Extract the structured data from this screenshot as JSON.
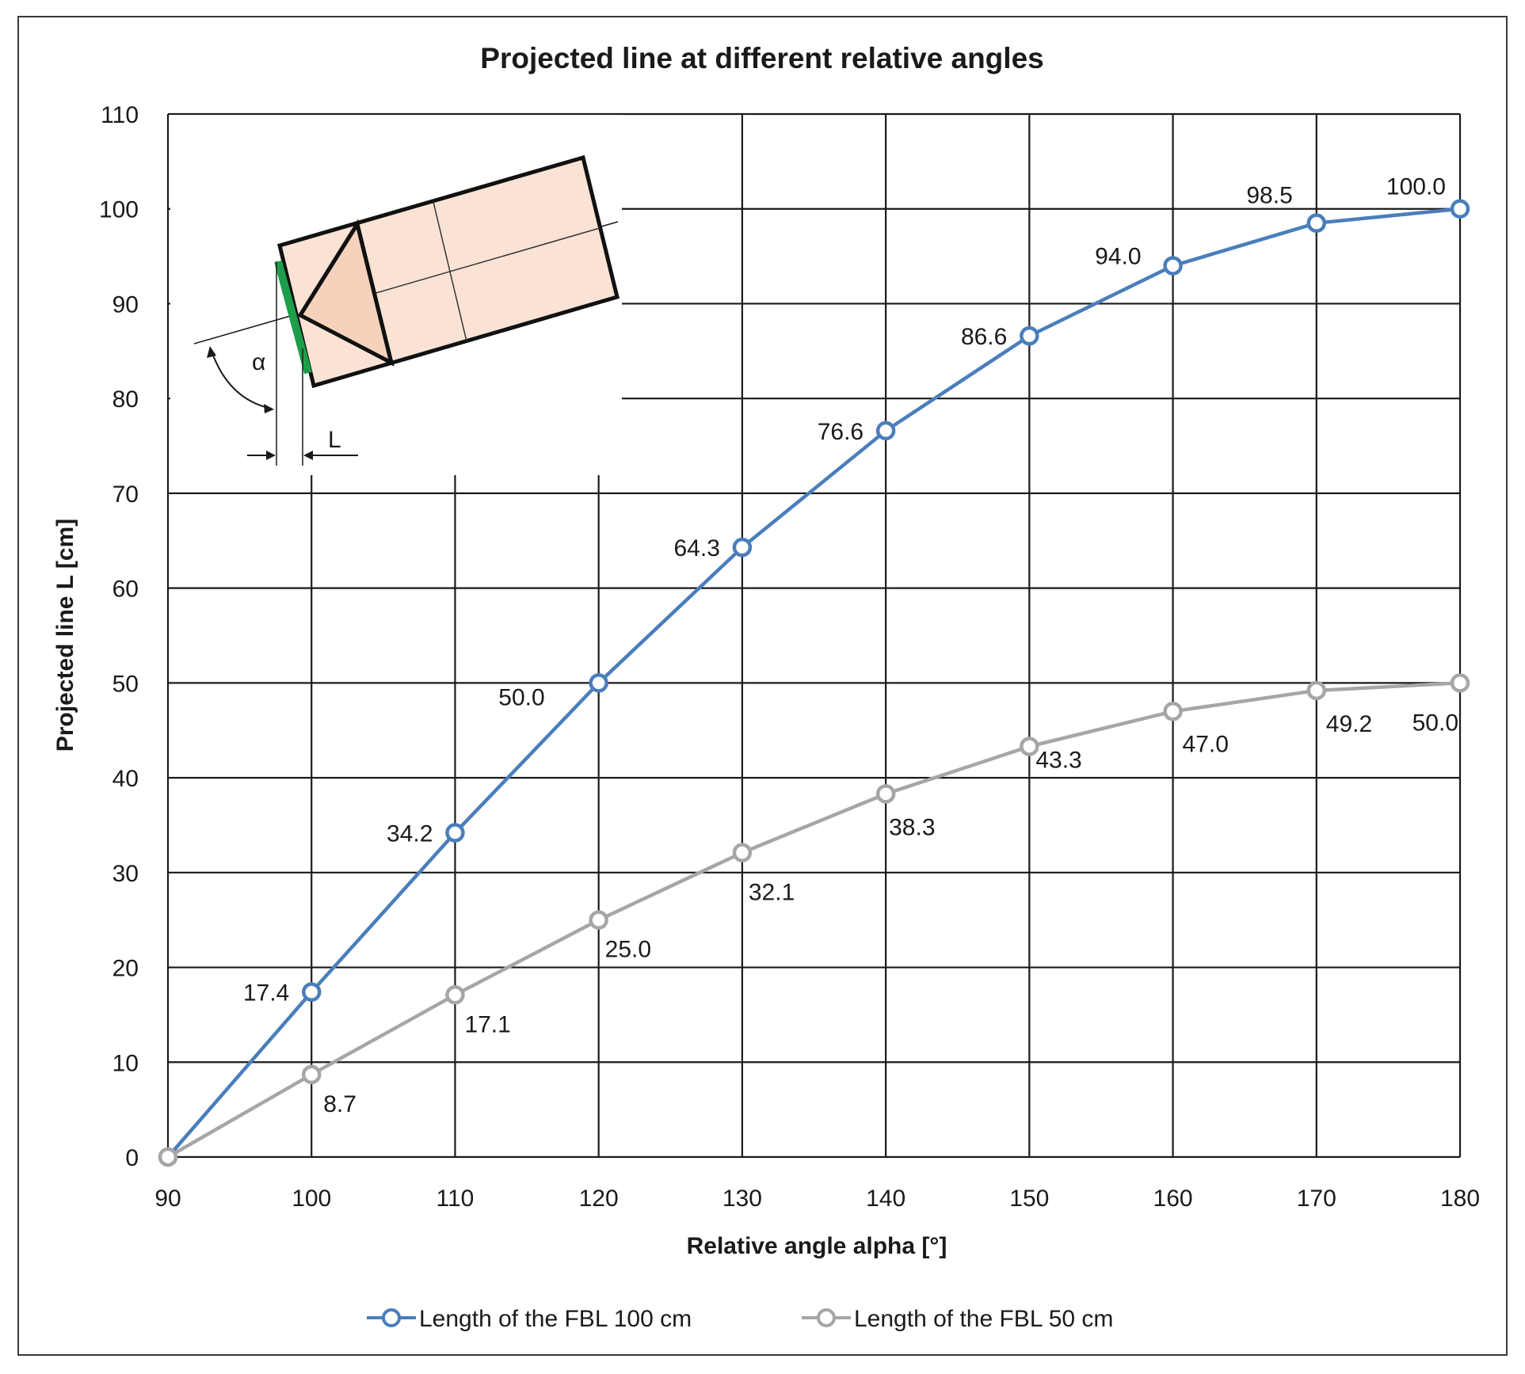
{
  "colors": {
    "series_1": "#4a7ebb",
    "series_2": "#a6a6a6",
    "inset_fill": "#fae3d5",
    "inset_triangle": "#f6d2bd",
    "inset_edge": "#1e9e4a"
  },
  "inset": {
    "alpha_symbol": "α",
    "length_symbol": "L"
  },
  "chart_data": {
    "type": "line",
    "title": "Projected line at different relative angles",
    "xlabel": "Relative angle alpha [°]",
    "ylabel": "Projected line L [cm]",
    "x": [
      90,
      100,
      110,
      120,
      130,
      140,
      150,
      160,
      170,
      180
    ],
    "xlim": [
      90,
      180
    ],
    "ylim": [
      0,
      110
    ],
    "x_ticks": [
      "90",
      "100",
      "110",
      "120",
      "130",
      "140",
      "150",
      "160",
      "170",
      "180"
    ],
    "y_ticks": [
      "0",
      "10",
      "20",
      "30",
      "40",
      "50",
      "60",
      "70",
      "80",
      "90",
      "100",
      "110"
    ],
    "grid": true,
    "legend_position": "bottom",
    "series": [
      {
        "name": "Length of the FBL 100 cm",
        "values": [
          0,
          17.4,
          34.2,
          50.0,
          64.3,
          76.6,
          86.6,
          94.0,
          98.5,
          100.0
        ],
        "labels": [
          "",
          "17.4",
          "34.2",
          "50.0",
          "64.3",
          "76.6",
          "86.6",
          "94.0",
          "98.5",
          "100.0"
        ]
      },
      {
        "name": "Length of the FBL 50 cm",
        "values": [
          0,
          8.7,
          17.1,
          25.0,
          32.1,
          38.3,
          43.3,
          47.0,
          49.2,
          50.0
        ],
        "labels": [
          "",
          "8.7",
          "17.1",
          "25.0",
          "32.1",
          "38.3",
          "43.3",
          "47.0",
          "49.2",
          "50.0"
        ]
      }
    ]
  }
}
